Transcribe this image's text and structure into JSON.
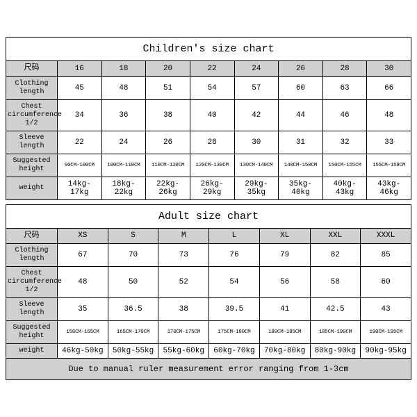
{
  "children": {
    "title": "Children's size chart",
    "header_label": "尺码",
    "sizes": [
      "16",
      "18",
      "20",
      "22",
      "24",
      "26",
      "28",
      "30"
    ],
    "rows": [
      {
        "label": "Clothing length",
        "values": [
          "45",
          "48",
          "51",
          "54",
          "57",
          "60",
          "63",
          "66"
        ],
        "tiny": false
      },
      {
        "label": "Chest circumference 1/2",
        "values": [
          "34",
          "36",
          "38",
          "40",
          "42",
          "44",
          "46",
          "48"
        ],
        "tiny": false
      },
      {
        "label": "Sleeve length",
        "values": [
          "22",
          "24",
          "26",
          "28",
          "30",
          "31",
          "32",
          "33"
        ],
        "tiny": false
      },
      {
        "label": "Suggested height",
        "values": [
          "90CM-100CM",
          "100CM-110CM",
          "110CM-120CM",
          "120CM-130CM",
          "130CM-140CM",
          "140CM-150CM",
          "150CM-155CM",
          "155CM-158CM"
        ],
        "tiny": true
      },
      {
        "label": "weight",
        "values": [
          "14kg-17kg",
          "18kg-22kg",
          "22kg-26kg",
          "26kg-29kg",
          "29kg-35kg",
          "35kg-40kg",
          "40kg-43kg",
          "43kg-46kg"
        ],
        "tiny": false
      }
    ]
  },
  "adult": {
    "title": "Adult size chart",
    "header_label": "尺码",
    "sizes": [
      "XS",
      "S",
      "M",
      "L",
      "XL",
      "XXL",
      "XXXL"
    ],
    "rows": [
      {
        "label": "Clothing length",
        "values": [
          "67",
          "70",
          "73",
          "76",
          "79",
          "82",
          "85"
        ],
        "tiny": false
      },
      {
        "label": "Chest circumference 1/2",
        "values": [
          "48",
          "50",
          "52",
          "54",
          "56",
          "58",
          "60"
        ],
        "tiny": false
      },
      {
        "label": "Sleeve length",
        "values": [
          "35",
          "36.5",
          "38",
          "39.5",
          "41",
          "42.5",
          "43"
        ],
        "tiny": false
      },
      {
        "label": "Suggested height",
        "values": [
          "158CM-165CM",
          "165CM-170CM",
          "170CM-175CM",
          "175CM-180CM",
          "180CM-185CM",
          "185CM-190CM",
          "190CM-195CM"
        ],
        "tiny": true
      },
      {
        "label": "weight",
        "values": [
          "46kg-50kg",
          "50kg-55kg",
          "55kg-60kg",
          "60kg-70kg",
          "70kg-80kg",
          "80kg-90kg",
          "90kg-95kg"
        ],
        "tiny": false
      }
    ]
  },
  "note": "Due to manual ruler measurement error ranging from 1-3cm",
  "colors": {
    "header_bg": "#d0d0d0",
    "border": "#000000",
    "background": "#ffffff"
  }
}
